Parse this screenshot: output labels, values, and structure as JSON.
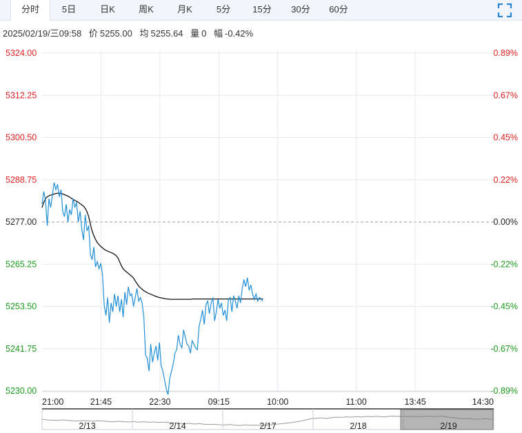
{
  "tabs": [
    {
      "label": "分时",
      "active": true
    },
    {
      "label": "5日",
      "active": false
    },
    {
      "label": "日K",
      "active": false
    },
    {
      "label": "周K",
      "active": false
    },
    {
      "label": "月K",
      "active": false
    },
    {
      "label": "5分",
      "active": false
    },
    {
      "label": "15分",
      "active": false
    },
    {
      "label": "30分",
      "active": false
    },
    {
      "label": "60分",
      "active": false
    }
  ],
  "expand_icon": "fullscreen-expand-icon",
  "info": {
    "datetime": "2025/02/19/三09:58",
    "price_label": "价",
    "price": "5255.00",
    "avg_label": "均",
    "avg": "5255.64",
    "vol_label": "量",
    "vol": "0",
    "change_label": "幅",
    "change": "-0.42%"
  },
  "colors": {
    "up": "#e02020",
    "down": "#1a9a1a",
    "price_line": "#1f8ed6",
    "avg_line": "#111111",
    "grid": "#e6e9ee",
    "preclose": "#999999"
  },
  "chart_data": {
    "type": "line",
    "ylim": [
      5230.0,
      5324.0
    ],
    "y_ticks": [
      "5324.00",
      "5312.25",
      "5300.50",
      "5288.75",
      "5277.00",
      "5265.25",
      "5253.50",
      "5241.75",
      "5230.00"
    ],
    "y_ticks_right": [
      "0.89%",
      "0.67%",
      "0.45%",
      "0.22%",
      "0.00%",
      "-0.22%",
      "-0.45%",
      "-0.67%",
      "-0.89%"
    ],
    "pre_close": 5277.0,
    "x_ticks": [
      "21:00",
      "21:45",
      "22:30",
      "09:15",
      "10:00",
      "11:00",
      "13:45",
      "14:30"
    ],
    "total_minutes": 345,
    "series": [
      {
        "name": "price",
        "values": [
          5282.0,
          5285.5,
          5283.0,
          5276.0,
          5283.5,
          5281.0,
          5284.5,
          5288.0,
          5286.0,
          5287.5,
          5284.0,
          5286.0,
          5280.0,
          5278.5,
          5282.0,
          5277.0,
          5280.5,
          5279.0,
          5283.5,
          5281.0,
          5282.5,
          5277.0,
          5280.0,
          5275.0,
          5272.0,
          5279.0,
          5274.5,
          5276.0,
          5268.0,
          5266.5,
          5270.0,
          5264.5,
          5266.0,
          5264.0,
          5265.5,
          5262.5,
          5254.0,
          5251.0,
          5256.0,
          5249.0,
          5254.5,
          5252.0,
          5257.0,
          5253.5,
          5256.5,
          5252.0,
          5255.5,
          5250.5,
          5257.5,
          5254.0,
          5259.0,
          5256.5,
          5257.0,
          5253.5,
          5256.0,
          5258.5,
          5255.0,
          5256.0,
          5254.5,
          5250.5,
          5240.0,
          5239.0,
          5235.5,
          5243.0,
          5238.0,
          5240.5,
          5242.5,
          5238.5,
          5243.5,
          5237.0,
          5235.5,
          5233.0,
          5230.5,
          5229.0,
          5233.5,
          5235.5,
          5237.5,
          5240.5,
          5241.5,
          5245.5,
          5243.0,
          5242.0,
          5247.0,
          5245.0,
          5243.0,
          5242.5,
          5240.5,
          5244.0,
          5243.0,
          5242.0,
          5241.5,
          5248.0,
          5250.0,
          5252.5,
          5248.5,
          5254.0,
          5255.0,
          5251.5,
          5254.5,
          5256.0,
          5249.5,
          5252.0,
          5255.5,
          5253.0,
          5254.5,
          5251.0,
          5252.5,
          5249.5,
          5255.5,
          5256.0,
          5252.0,
          5256.5,
          5255.0,
          5253.0,
          5256.5,
          5254.5,
          5258.5,
          5261.0,
          5259.0,
          5261.5,
          5258.0,
          5259.5,
          5257.0,
          5255.5,
          5257.0,
          5255.0,
          5256.0,
          5255.5,
          5255.0
        ]
      },
      {
        "name": "avg",
        "values": [
          5281.0,
          5282.5,
          5283.5,
          5284.0,
          5284.3,
          5284.5,
          5284.6,
          5284.8,
          5284.9,
          5285.0,
          5285.0,
          5284.9,
          5284.8,
          5284.6,
          5284.4,
          5284.2,
          5283.9,
          5283.6,
          5283.3,
          5283.0,
          5282.8,
          5282.5,
          5282.1,
          5281.8,
          5281.4,
          5280.8,
          5279.9,
          5278.5,
          5276.4,
          5274.5,
          5273.2,
          5272.1,
          5271.3,
          5270.7,
          5270.2,
          5269.8,
          5269.4,
          5269.1,
          5268.9,
          5268.7,
          5268.5,
          5268.3,
          5268.0,
          5267.6,
          5267.0,
          5265.9,
          5264.8,
          5264.0,
          5263.5,
          5263.1,
          5262.7,
          5262.3,
          5261.9,
          5261.4,
          5260.6,
          5259.9,
          5259.2,
          5258.7,
          5258.3,
          5257.9,
          5257.6,
          5257.3,
          5257.1,
          5256.9,
          5256.7,
          5256.5,
          5256.3,
          5256.1,
          5256.0,
          5255.9,
          5255.8,
          5255.7,
          5255.6,
          5255.6,
          5255.5,
          5255.5,
          5255.5,
          5255.5,
          5255.5,
          5255.5,
          5255.5,
          5255.5,
          5255.5,
          5255.5,
          5255.5,
          5255.5,
          5255.5,
          5255.6,
          5255.6,
          5255.6,
          5255.6,
          5255.6,
          5255.6,
          5255.6,
          5255.6,
          5255.6,
          5255.6,
          5255.6,
          5255.6,
          5255.6,
          5255.6,
          5255.6,
          5255.6,
          5255.6,
          5255.6,
          5255.6,
          5255.6,
          5255.6,
          5255.6,
          5255.6,
          5255.6,
          5255.6,
          5255.6,
          5255.6,
          5255.6,
          5255.6,
          5255.6,
          5255.6,
          5255.6,
          5255.6,
          5255.6,
          5255.6,
          5255.6,
          5255.6,
          5255.6,
          5255.6,
          5255.6,
          5255.6,
          5255.64
        ]
      }
    ],
    "navigator": {
      "labels": [
        "2/13",
        "2/14",
        "2/17",
        "2/18",
        "2/19"
      ],
      "values": [
        0.55,
        0.5,
        0.48,
        0.46,
        0.5,
        0.47,
        0.44,
        0.42,
        0.45,
        0.43,
        0.4,
        0.44,
        0.41,
        0.38,
        0.36,
        0.4,
        0.37,
        0.35,
        0.38,
        0.34,
        0.36,
        0.33,
        0.35,
        0.31,
        0.34,
        0.3,
        0.27,
        0.24,
        0.22,
        0.25,
        0.2,
        0.23,
        0.18,
        0.16,
        0.19,
        0.15,
        0.13,
        0.17,
        0.12,
        0.1,
        0.14,
        0.11,
        0.13,
        0.1,
        0.12,
        0.15,
        0.18,
        0.22,
        0.25,
        0.3,
        0.35,
        0.42,
        0.5,
        0.58,
        0.62,
        0.65,
        0.6,
        0.66,
        0.7,
        0.68,
        0.72,
        0.7,
        0.74,
        0.71,
        0.75,
        0.73,
        0.76,
        0.72,
        0.74,
        0.78,
        0.75,
        0.77,
        0.74,
        0.76,
        0.73,
        0.75,
        0.77,
        0.74,
        0.76,
        0.78,
        0.7,
        0.66,
        0.62,
        0.58,
        0.6,
        0.56,
        0.55,
        0.58,
        0.56,
        0.55
      ]
    }
  }
}
